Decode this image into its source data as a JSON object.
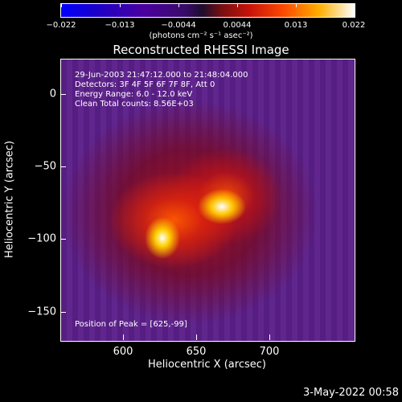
{
  "colorbar": {
    "labels": [
      "−0.022",
      "−0.013",
      "−0.0044",
      "0.0044",
      "0.013",
      "0.022"
    ],
    "units": "(photons cm⁻² s⁻¹ asec⁻²)"
  },
  "title": "Reconstructed RHESSI Image",
  "info": {
    "time": "29-Jun-2003 21:47:12.000 to 21:48:04.000",
    "detectors": "Detectors: 3F 4F 5F 6F 7F 8F, Att 0",
    "energy": "Energy Range: 6.0 - 12.0 keV",
    "clean": "Clean     Total counts: 8.56E+03"
  },
  "peak": "Position of Peak = [625,-99]",
  "axes": {
    "xlabel": "Heliocentric X (arcsec)",
    "ylabel": "Heliocentric Y (arcsec)",
    "xticks": [
      "600",
      "650",
      "700"
    ],
    "yticks": [
      "0",
      "−50",
      "−100",
      "−150"
    ]
  },
  "datestamp": "3-May-2022 00:58"
}
